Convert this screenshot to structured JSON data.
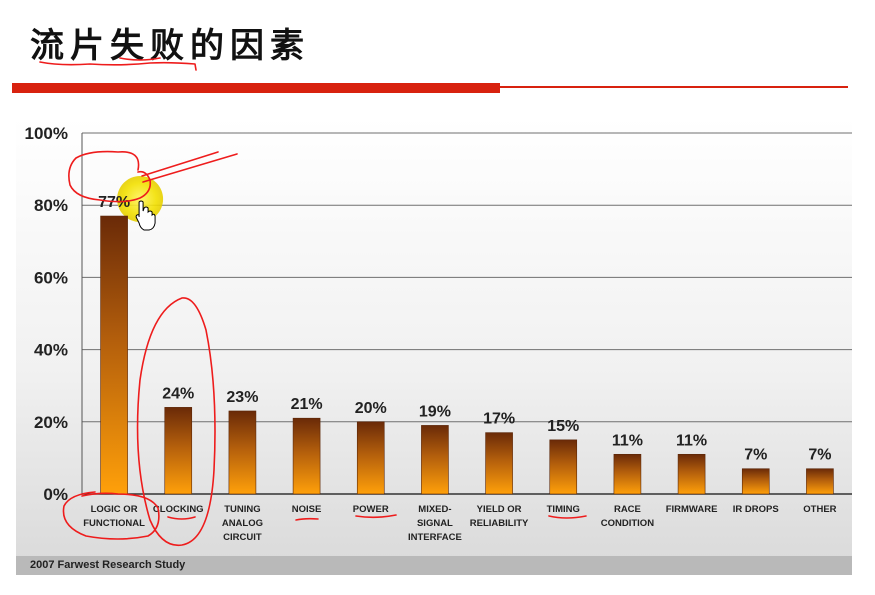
{
  "slide": {
    "title": "流片失败的因素",
    "footer": "2007 Farwest Research Study"
  },
  "colors": {
    "title_bar": "#d8220f",
    "bar_top": "#6a2a08",
    "bar_bottom": "#ffa00a",
    "annotation": "#ee1c1c",
    "cursor_highlight": "#f2e000"
  },
  "icons": [
    "hand-cursor-icon"
  ],
  "chart_data": {
    "type": "bar",
    "categories": [
      [
        "LOGIC OR",
        "FUNCTIONAL"
      ],
      [
        "CLOCKING"
      ],
      [
        "TUNING",
        "ANALOG",
        "CIRCUIT"
      ],
      [
        "NOISE"
      ],
      [
        "POWER"
      ],
      [
        "MIXED-",
        "SIGNAL",
        "INTERFACE"
      ],
      [
        "YIELD OR",
        "RELIABILITY"
      ],
      [
        "TIMING"
      ],
      [
        "RACE",
        "CONDITION"
      ],
      [
        "FIRMWARE"
      ],
      [
        "IR DROPS"
      ],
      [
        "OTHER"
      ]
    ],
    "values": [
      77,
      24,
      23,
      21,
      20,
      19,
      17,
      15,
      11,
      11,
      7,
      7
    ],
    "data_labels": [
      "77%",
      "24%",
      "23%",
      "21%",
      "20%",
      "19%",
      "17%",
      "15%",
      "11%",
      "11%",
      "7%",
      "7%"
    ],
    "yticks": [
      "0%",
      "20%",
      "40%",
      "60%",
      "80%",
      "100%"
    ],
    "ylim": [
      0,
      100
    ],
    "grid": true,
    "legend": "none"
  }
}
